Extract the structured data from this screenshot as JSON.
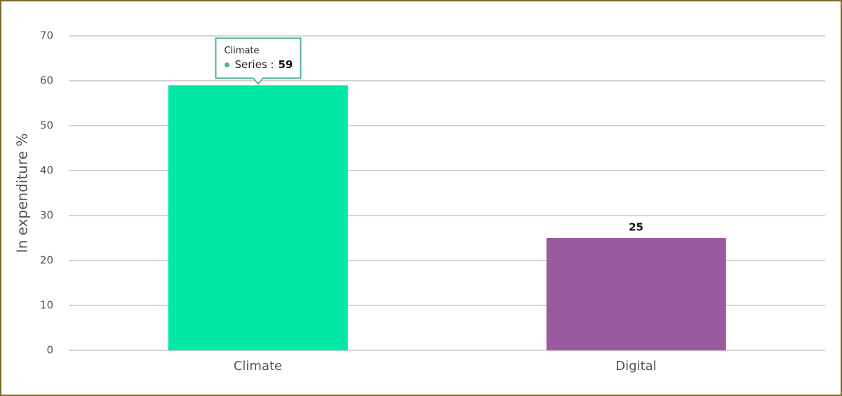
{
  "chart_data": {
    "type": "bar",
    "y_label": "In expenditure %",
    "categories": [
      "Climate",
      "Digital"
    ],
    "values": [
      59,
      25
    ],
    "colors": [
      "#00e8a6",
      "#9b59a0"
    ],
    "data_labels": [
      false,
      true
    ],
    "tooltip": {
      "text": "Series :"
    },
    "ylim": [
      0,
      70
    ],
    "yticks": [
      0,
      10,
      20,
      30,
      40,
      50,
      60,
      70
    ],
    "grid": true
  }
}
